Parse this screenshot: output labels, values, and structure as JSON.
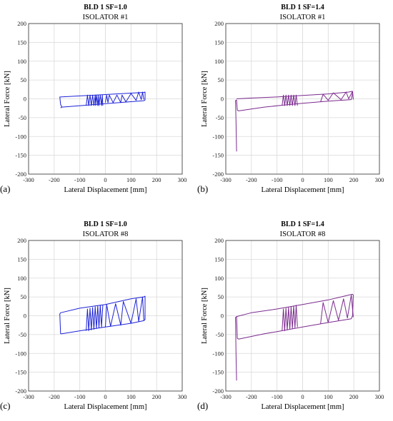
{
  "colors": {
    "blue": "#1c22d6",
    "purple": "#7b2a8e",
    "grid": "#d9d9d9",
    "axis": "#333333"
  },
  "chart_data": [
    {
      "type": "line",
      "panel_label": "(a)",
      "title": "BLD 1 SF=1.0",
      "subtitle": "ISOLATOR #1",
      "xlabel": "Lateral Displacement [mm]",
      "ylabel": "Lateral Force [kN]",
      "xlim": [
        -300,
        300
      ],
      "ylim": [
        -200,
        200
      ],
      "xticks": [
        "-300",
        "-200",
        "-100",
        "0",
        "100",
        "200",
        "300"
      ],
      "yticks": [
        "200",
        "150",
        "100",
        "50",
        "0",
        "-50",
        "-100",
        "-150",
        "-200"
      ],
      "grid": true,
      "color": "blue",
      "series": [
        {
          "x": [
            -175,
            -170,
            150,
            155,
            155,
            150,
            -175,
            -178,
            -175,
            -170
          ],
          "y": [
            -24,
            -22,
            -5,
            -3,
            18,
            17,
            5,
            5,
            -15,
            -22
          ]
        },
        {
          "x": [
            -75,
            -70,
            -65,
            -60,
            -55,
            -50,
            -45,
            -40,
            -38,
            -35,
            -30,
            -28,
            -25,
            -20,
            -15,
            -12,
            -10
          ],
          "y": [
            -18,
            10,
            -18,
            10,
            -18,
            10,
            -18,
            10,
            -18,
            10,
            -18,
            10,
            -18,
            10,
            -18,
            10,
            -18
          ]
        },
        {
          "x": [
            0,
            5,
            10,
            15,
            30,
            45,
            60,
            65,
            80,
            100,
            120,
            130,
            140,
            145,
            150
          ],
          "y": [
            -10,
            10,
            -10,
            10,
            -10,
            10,
            -10,
            10,
            -8,
            14,
            -4,
            18,
            -2,
            18,
            -2
          ]
        }
      ]
    },
    {
      "type": "line",
      "panel_label": "(b)",
      "title": "BLD 1 SF=1.4",
      "subtitle": "ISOLATOR #1",
      "xlabel": "Lateral Displacement [mm]",
      "ylabel": "Lateral Force [kN]",
      "xlim": [
        -300,
        300
      ],
      "ylim": [
        -200,
        200
      ],
      "xticks": [
        "-300",
        "-200",
        "-100",
        "0",
        "100",
        "200",
        "300"
      ],
      "yticks": [
        "200",
        "150",
        "100",
        "50",
        "0",
        "-50",
        "-100",
        "-150",
        "-200"
      ],
      "grid": true,
      "color": "purple",
      "series": [
        {
          "x": [
            -258,
            -260,
            -262,
            -258,
            -255,
            -250,
            -240,
            -200,
            -150,
            -80,
            0,
            100,
            190,
            195,
            193,
            180,
            100,
            0,
            -100,
            -200,
            -258
          ],
          "y": [
            -140,
            -60,
            -5,
            -3,
            -30,
            -32,
            -31,
            -27,
            -22,
            -17,
            -12,
            -6,
            -2,
            15,
            20,
            18,
            13,
            9,
            5,
            2,
            0
          ]
        },
        {
          "x": [
            -80,
            -75,
            -70,
            -65,
            -60,
            -55,
            -50,
            -45,
            -40,
            -35,
            -30,
            -25,
            -20
          ],
          "y": [
            -18,
            10,
            -18,
            10,
            -18,
            10,
            -18,
            10,
            -18,
            10,
            -18,
            10,
            -18
          ]
        },
        {
          "x": [
            70,
            80,
            100,
            120,
            150,
            170,
            180,
            195,
            198
          ],
          "y": [
            -8,
            12,
            -4,
            16,
            -2,
            18,
            0,
            20,
            -2
          ]
        }
      ]
    },
    {
      "type": "line",
      "panel_label": "(c)",
      "title": "BLD 1 SF=1.0",
      "subtitle": "ISOLATOR #8",
      "xlabel": "Lateral Displacement [mm]",
      "ylabel": "Lateral Force [kN]",
      "xlim": [
        -300,
        300
      ],
      "ylim": [
        -200,
        200
      ],
      "xticks": [
        "-300",
        "-200",
        "-100",
        "0",
        "100",
        "200",
        "300"
      ],
      "yticks": [
        "200",
        "150",
        "100",
        "50",
        "0",
        "-50",
        "-100",
        "-150",
        "-200"
      ],
      "grid": true,
      "color": "blue",
      "series": [
        {
          "x": [
            -175,
            -170,
            -100,
            0,
            100,
            150,
            155,
            155,
            150,
            100,
            0,
            -100,
            -175,
            -178,
            -175
          ],
          "y": [
            -48,
            -48,
            -40,
            -30,
            -20,
            -13,
            -10,
            52,
            50,
            45,
            30,
            20,
            8,
            5,
            -48
          ]
        },
        {
          "x": [
            -75,
            -70,
            -65,
            -60,
            -55,
            -50,
            -45,
            -40,
            -35,
            -30,
            -25,
            -20,
            -15,
            -10
          ],
          "y": [
            -40,
            18,
            -40,
            20,
            -38,
            22,
            -36,
            24,
            -34,
            26,
            -32,
            28,
            -30,
            28
          ]
        },
        {
          "x": [
            0,
            5,
            20,
            40,
            60,
            70,
            100,
            120,
            130,
            145,
            150
          ],
          "y": [
            -30,
            30,
            -28,
            32,
            -25,
            38,
            -20,
            45,
            -15,
            50,
            -12
          ]
        }
      ]
    },
    {
      "type": "line",
      "panel_label": "(d)",
      "title": "BLD 1  SF=1.4",
      "subtitle": "ISOLATOR #8",
      "xlabel": "Lateral Displacement [mm]",
      "ylabel": "Lateral Force [kN]",
      "xlim": [
        -300,
        300
      ],
      "ylim": [
        -200,
        200
      ],
      "xticks": [
        "-300",
        "-200",
        "-100",
        "0",
        "100",
        "200",
        "300"
      ],
      "yticks": [
        "200",
        "150",
        "100",
        "50",
        "0",
        "-50",
        "-100",
        "-150",
        "-200"
      ],
      "grid": true,
      "color": "purple",
      "series": [
        {
          "x": [
            -258,
            -260,
            -262,
            -258,
            -255,
            -250,
            -200,
            -150,
            -100,
            0,
            100,
            190,
            195,
            198,
            195,
            180,
            150,
            100,
            0,
            -100,
            -200,
            -258
          ],
          "y": [
            -172,
            -100,
            -5,
            -2,
            -60,
            -62,
            -55,
            -48,
            -42,
            -30,
            -18,
            -8,
            0,
            55,
            57,
            55,
            50,
            42,
            30,
            18,
            8,
            -2
          ]
        },
        {
          "x": [
            -80,
            -75,
            -70,
            -65,
            -60,
            -55,
            -50,
            -45,
            -40,
            -35,
            -30,
            -25,
            -20
          ],
          "y": [
            -40,
            18,
            -40,
            20,
            -38,
            22,
            -36,
            24,
            -34,
            26,
            -32,
            28,
            -30
          ]
        },
        {
          "x": [
            70,
            80,
            100,
            120,
            140,
            160,
            175,
            190,
            198
          ],
          "y": [
            -22,
            35,
            -18,
            40,
            -12,
            45,
            -6,
            55,
            -4
          ]
        }
      ]
    }
  ]
}
